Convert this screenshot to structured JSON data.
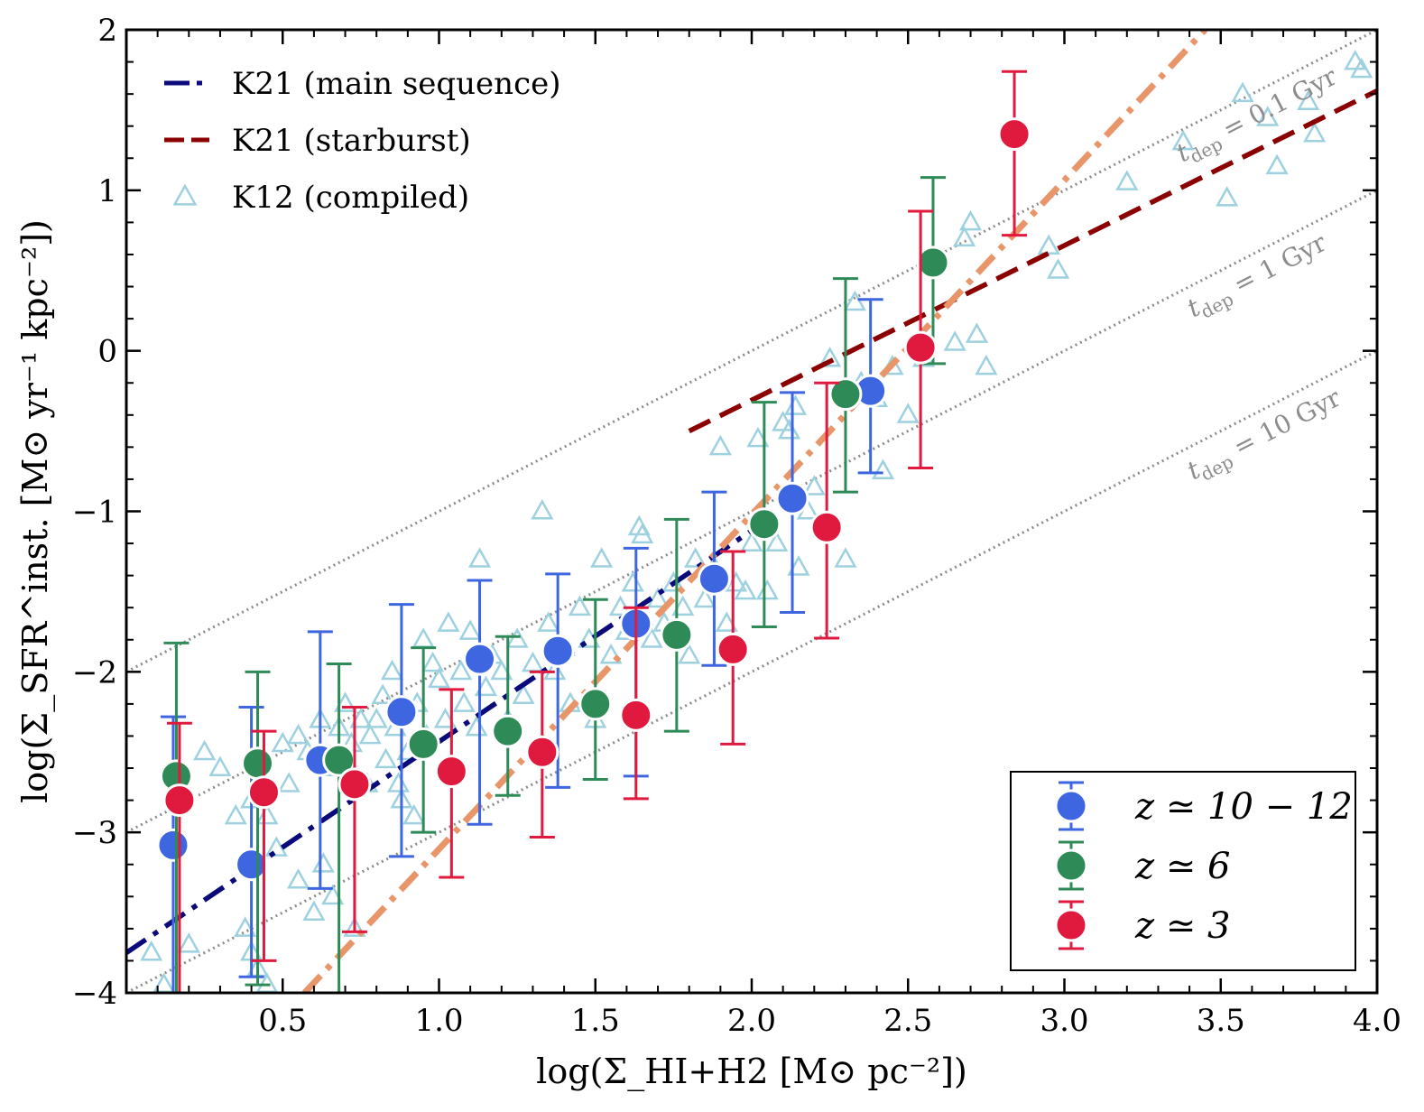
{
  "chart_data": {
    "type": "scatter",
    "xlabel": "log(Σ_HI+H2 [M⊙ pc⁻²])",
    "ylabel": "log(Σ_SFR^inst. [M⊙ yr⁻¹ kpc⁻²])",
    "xlim": [
      0.0,
      4.0
    ],
    "ylim": [
      -4,
      2
    ],
    "xticks": [
      "0.5",
      "1.0",
      "1.5",
      "2.0",
      "2.5",
      "3.0",
      "3.5",
      "4.0"
    ],
    "yticks": [
      "−4",
      "−3",
      "−2",
      "−1",
      "0",
      "1",
      "2"
    ],
    "xtick_values": [
      0.5,
      1.0,
      1.5,
      2.0,
      2.5,
      3.0,
      3.5,
      4.0
    ],
    "ytick_values": [
      -4,
      -3,
      -2,
      -1,
      0,
      1,
      2
    ],
    "lines": [
      {
        "name": "K21 (main sequence)",
        "color": "#0a0a7a",
        "style": "dashdot",
        "x": [
          0.0,
          2.0
        ],
        "y": [
          -3.75,
          -1.12
        ]
      },
      {
        "name": "K21 (starburst)",
        "color": "#8b0000",
        "style": "dashed",
        "x": [
          1.8,
          4.0
        ],
        "y": [
          -0.5,
          1.62
        ]
      },
      {
        "name": "",
        "color": "#e8956a",
        "style": "dashdot",
        "x": [
          0.57,
          3.45
        ],
        "y": [
          -4.0,
          2.0
        ]
      }
    ],
    "tdep_lines": [
      {
        "label": "t_dep = 0.1 Gyr",
        "offset": -2.0
      },
      {
        "label": "t_dep = 1 Gyr",
        "offset": -3.0
      },
      {
        "label": "t_dep = 10 Gyr",
        "offset": -4.0
      }
    ],
    "tdep_text": {
      "t": "t",
      "sub": "dep",
      "eq": " = ",
      "values": [
        "0.1 Gyr",
        "1 Gyr",
        "10 Gyr"
      ]
    },
    "k12_points": [
      [
        0.08,
        -3.75
      ],
      [
        0.12,
        -3.95
      ],
      [
        0.2,
        -3.7
      ],
      [
        0.25,
        -2.5
      ],
      [
        0.3,
        -2.6
      ],
      [
        0.35,
        -2.9
      ],
      [
        0.38,
        -3.6
      ],
      [
        0.4,
        -3.75
      ],
      [
        0.42,
        -3.85
      ],
      [
        0.45,
        -3.95
      ],
      [
        0.4,
        -2.8
      ],
      [
        0.45,
        -2.9
      ],
      [
        0.48,
        -3.1
      ],
      [
        0.5,
        -2.45
      ],
      [
        0.52,
        -2.7
      ],
      [
        0.55,
        -3.3
      ],
      [
        0.55,
        -2.4
      ],
      [
        0.58,
        -2.5
      ],
      [
        0.6,
        -3.5
      ],
      [
        0.62,
        -2.3
      ],
      [
        0.63,
        -3.2
      ],
      [
        0.65,
        -2.6
      ],
      [
        0.66,
        -3.4
      ],
      [
        0.68,
        -2.35
      ],
      [
        0.7,
        -2.2
      ],
      [
        0.72,
        -2.45
      ],
      [
        0.73,
        -3.6
      ],
      [
        0.75,
        -2.3
      ],
      [
        0.77,
        -2.7
      ],
      [
        0.78,
        -2.4
      ],
      [
        0.8,
        -2.3
      ],
      [
        0.82,
        -2.15
      ],
      [
        0.83,
        -2.55
      ],
      [
        0.85,
        -2.0
      ],
      [
        0.86,
        -2.35
      ],
      [
        0.87,
        -2.7
      ],
      [
        0.88,
        -2.8
      ],
      [
        0.9,
        -2.5
      ],
      [
        0.92,
        -2.9
      ],
      [
        0.93,
        -2.2
      ],
      [
        0.95,
        -1.8
      ],
      [
        0.96,
        -2.4
      ],
      [
        0.98,
        -1.95
      ],
      [
        1.0,
        -2.05
      ],
      [
        1.02,
        -2.3
      ],
      [
        1.03,
        -1.7
      ],
      [
        1.05,
        -2.6
      ],
      [
        1.07,
        -2.0
      ],
      [
        1.08,
        -2.2
      ],
      [
        1.1,
        -1.75
      ],
      [
        1.12,
        -2.35
      ],
      [
        1.13,
        -1.3
      ],
      [
        1.15,
        -2.1
      ],
      [
        1.17,
        -1.9
      ],
      [
        1.2,
        -2.0
      ],
      [
        1.22,
        -2.3
      ],
      [
        1.25,
        -1.8
      ],
      [
        1.27,
        -2.15
      ],
      [
        1.3,
        -1.95
      ],
      [
        1.33,
        -1.0
      ],
      [
        1.35,
        -1.7
      ],
      [
        1.37,
        -2.0
      ],
      [
        1.4,
        -1.85
      ],
      [
        1.42,
        -2.2
      ],
      [
        1.45,
        -1.6
      ],
      [
        1.48,
        -1.8
      ],
      [
        1.5,
        -2.3
      ],
      [
        1.52,
        -1.3
      ],
      [
        1.55,
        -1.9
      ],
      [
        1.58,
        -1.6
      ],
      [
        1.6,
        -1.75
      ],
      [
        1.62,
        -1.45
      ],
      [
        1.64,
        -1.1
      ],
      [
        1.65,
        -1.15
      ],
      [
        1.68,
        -1.8
      ],
      [
        1.7,
        -1.55
      ],
      [
        1.72,
        -1.7
      ],
      [
        1.75,
        -1.45
      ],
      [
        1.78,
        -1.6
      ],
      [
        1.8,
        -1.9
      ],
      [
        1.82,
        -1.3
      ],
      [
        1.85,
        -1.55
      ],
      [
        1.88,
        -1.35
      ],
      [
        1.9,
        -0.6
      ],
      [
        1.92,
        -1.7
      ],
      [
        1.95,
        -1.45
      ],
      [
        1.98,
        -1.5
      ],
      [
        2.0,
        -1.2
      ],
      [
        2.02,
        -0.55
      ],
      [
        2.05,
        -1.5
      ],
      [
        2.08,
        -1.2
      ],
      [
        2.1,
        -0.45
      ],
      [
        2.12,
        -0.5
      ],
      [
        2.14,
        -0.35
      ],
      [
        2.15,
        -1.35
      ],
      [
        2.18,
        -1.0
      ],
      [
        2.2,
        -0.85
      ],
      [
        2.25,
        -0.05
      ],
      [
        2.3,
        -1.3
      ],
      [
        2.33,
        0.3
      ],
      [
        2.35,
        -0.2
      ],
      [
        2.4,
        -0.3
      ],
      [
        2.42,
        -0.75
      ],
      [
        2.45,
        -0.1
      ],
      [
        2.5,
        -0.4
      ],
      [
        2.55,
        -0.05
      ],
      [
        2.65,
        0.05
      ],
      [
        2.68,
        0.7
      ],
      [
        2.7,
        0.8
      ],
      [
        2.72,
        0.1
      ],
      [
        2.75,
        -0.1
      ],
      [
        2.95,
        0.65
      ],
      [
        2.98,
        0.5
      ],
      [
        3.2,
        1.05
      ],
      [
        3.38,
        1.3
      ],
      [
        3.52,
        0.95
      ],
      [
        3.57,
        1.6
      ],
      [
        3.65,
        1.45
      ],
      [
        3.68,
        1.15
      ],
      [
        3.78,
        1.55
      ],
      [
        3.8,
        1.35
      ],
      [
        3.93,
        1.8
      ],
      [
        3.95,
        1.75
      ]
    ],
    "series": [
      {
        "name": "z ≃ 10 − 12",
        "color": "#3e66e0",
        "x": [
          0.15,
          0.4,
          0.62,
          0.88,
          1.13,
          1.38,
          1.63,
          1.88,
          2.13,
          2.38
        ],
        "y": [
          -3.08,
          -3.2,
          -2.55,
          -2.25,
          -1.92,
          -1.87,
          -1.7,
          -1.42,
          -0.92,
          -0.25
        ],
        "yerr_low": [
          -4.0,
          -3.9,
          -3.35,
          -3.15,
          -2.95,
          -2.72,
          -2.65,
          -1.96,
          -1.63,
          -0.76
        ],
        "yerr_high": [
          -2.28,
          -2.22,
          -1.75,
          -1.58,
          -1.43,
          -1.39,
          -1.23,
          -0.88,
          -0.26,
          0.32
        ]
      },
      {
        "name": "z ≃ 6",
        "color": "#2e8b57",
        "x": [
          0.16,
          0.42,
          0.68,
          0.95,
          1.22,
          1.5,
          1.76,
          2.04,
          2.3,
          2.58
        ],
        "y": [
          -2.65,
          -2.57,
          -2.55,
          -2.45,
          -2.37,
          -2.2,
          -1.77,
          -1.08,
          -0.27,
          0.55
        ],
        "yerr_low": [
          -4.0,
          -3.95,
          -4.0,
          -3.0,
          -2.77,
          -2.67,
          -2.37,
          -1.72,
          -0.88,
          -0.08
        ],
        "yerr_high": [
          -1.82,
          -2.0,
          -1.95,
          -1.85,
          -1.78,
          -1.55,
          -1.05,
          -0.32,
          0.45,
          1.08
        ]
      },
      {
        "name": "z ≃ 3",
        "color": "#e0193f",
        "x": [
          0.17,
          0.44,
          0.73,
          1.04,
          1.33,
          1.63,
          1.94,
          2.24,
          2.54,
          2.84
        ],
        "y": [
          -2.8,
          -2.75,
          -2.7,
          -2.62,
          -2.5,
          -2.27,
          -1.86,
          -1.1,
          0.02,
          1.35
        ],
        "yerr_low": [
          -4.0,
          -3.8,
          -3.62,
          -3.28,
          -3.03,
          -2.79,
          -2.45,
          -1.79,
          -0.73,
          0.72
        ],
        "yerr_high": [
          -2.32,
          -2.37,
          -2.22,
          -2.11,
          -2.0,
          -1.6,
          -1.25,
          -0.2,
          0.87,
          1.74
        ]
      }
    ],
    "legend_top": [
      {
        "label": "K21 (main sequence)",
        "color": "#0a0a7a",
        "kind": "dashdot"
      },
      {
        "label": "K21 (starburst)",
        "color": "#8b0000",
        "kind": "dashed"
      },
      {
        "label": "K12 (compiled)",
        "color": "#9ed1e0",
        "kind": "triangle"
      }
    ],
    "legend_bottom": [
      {
        "label": "z ≃ 10 − 12",
        "color": "#3e66e0"
      },
      {
        "label": "z ≃ 6",
        "color": "#2e8b57"
      },
      {
        "label": "z ≃ 3",
        "color": "#e0193f"
      }
    ],
    "colors": {
      "k12": "#9ed1e0",
      "tdep": "#8c8c8c"
    }
  }
}
